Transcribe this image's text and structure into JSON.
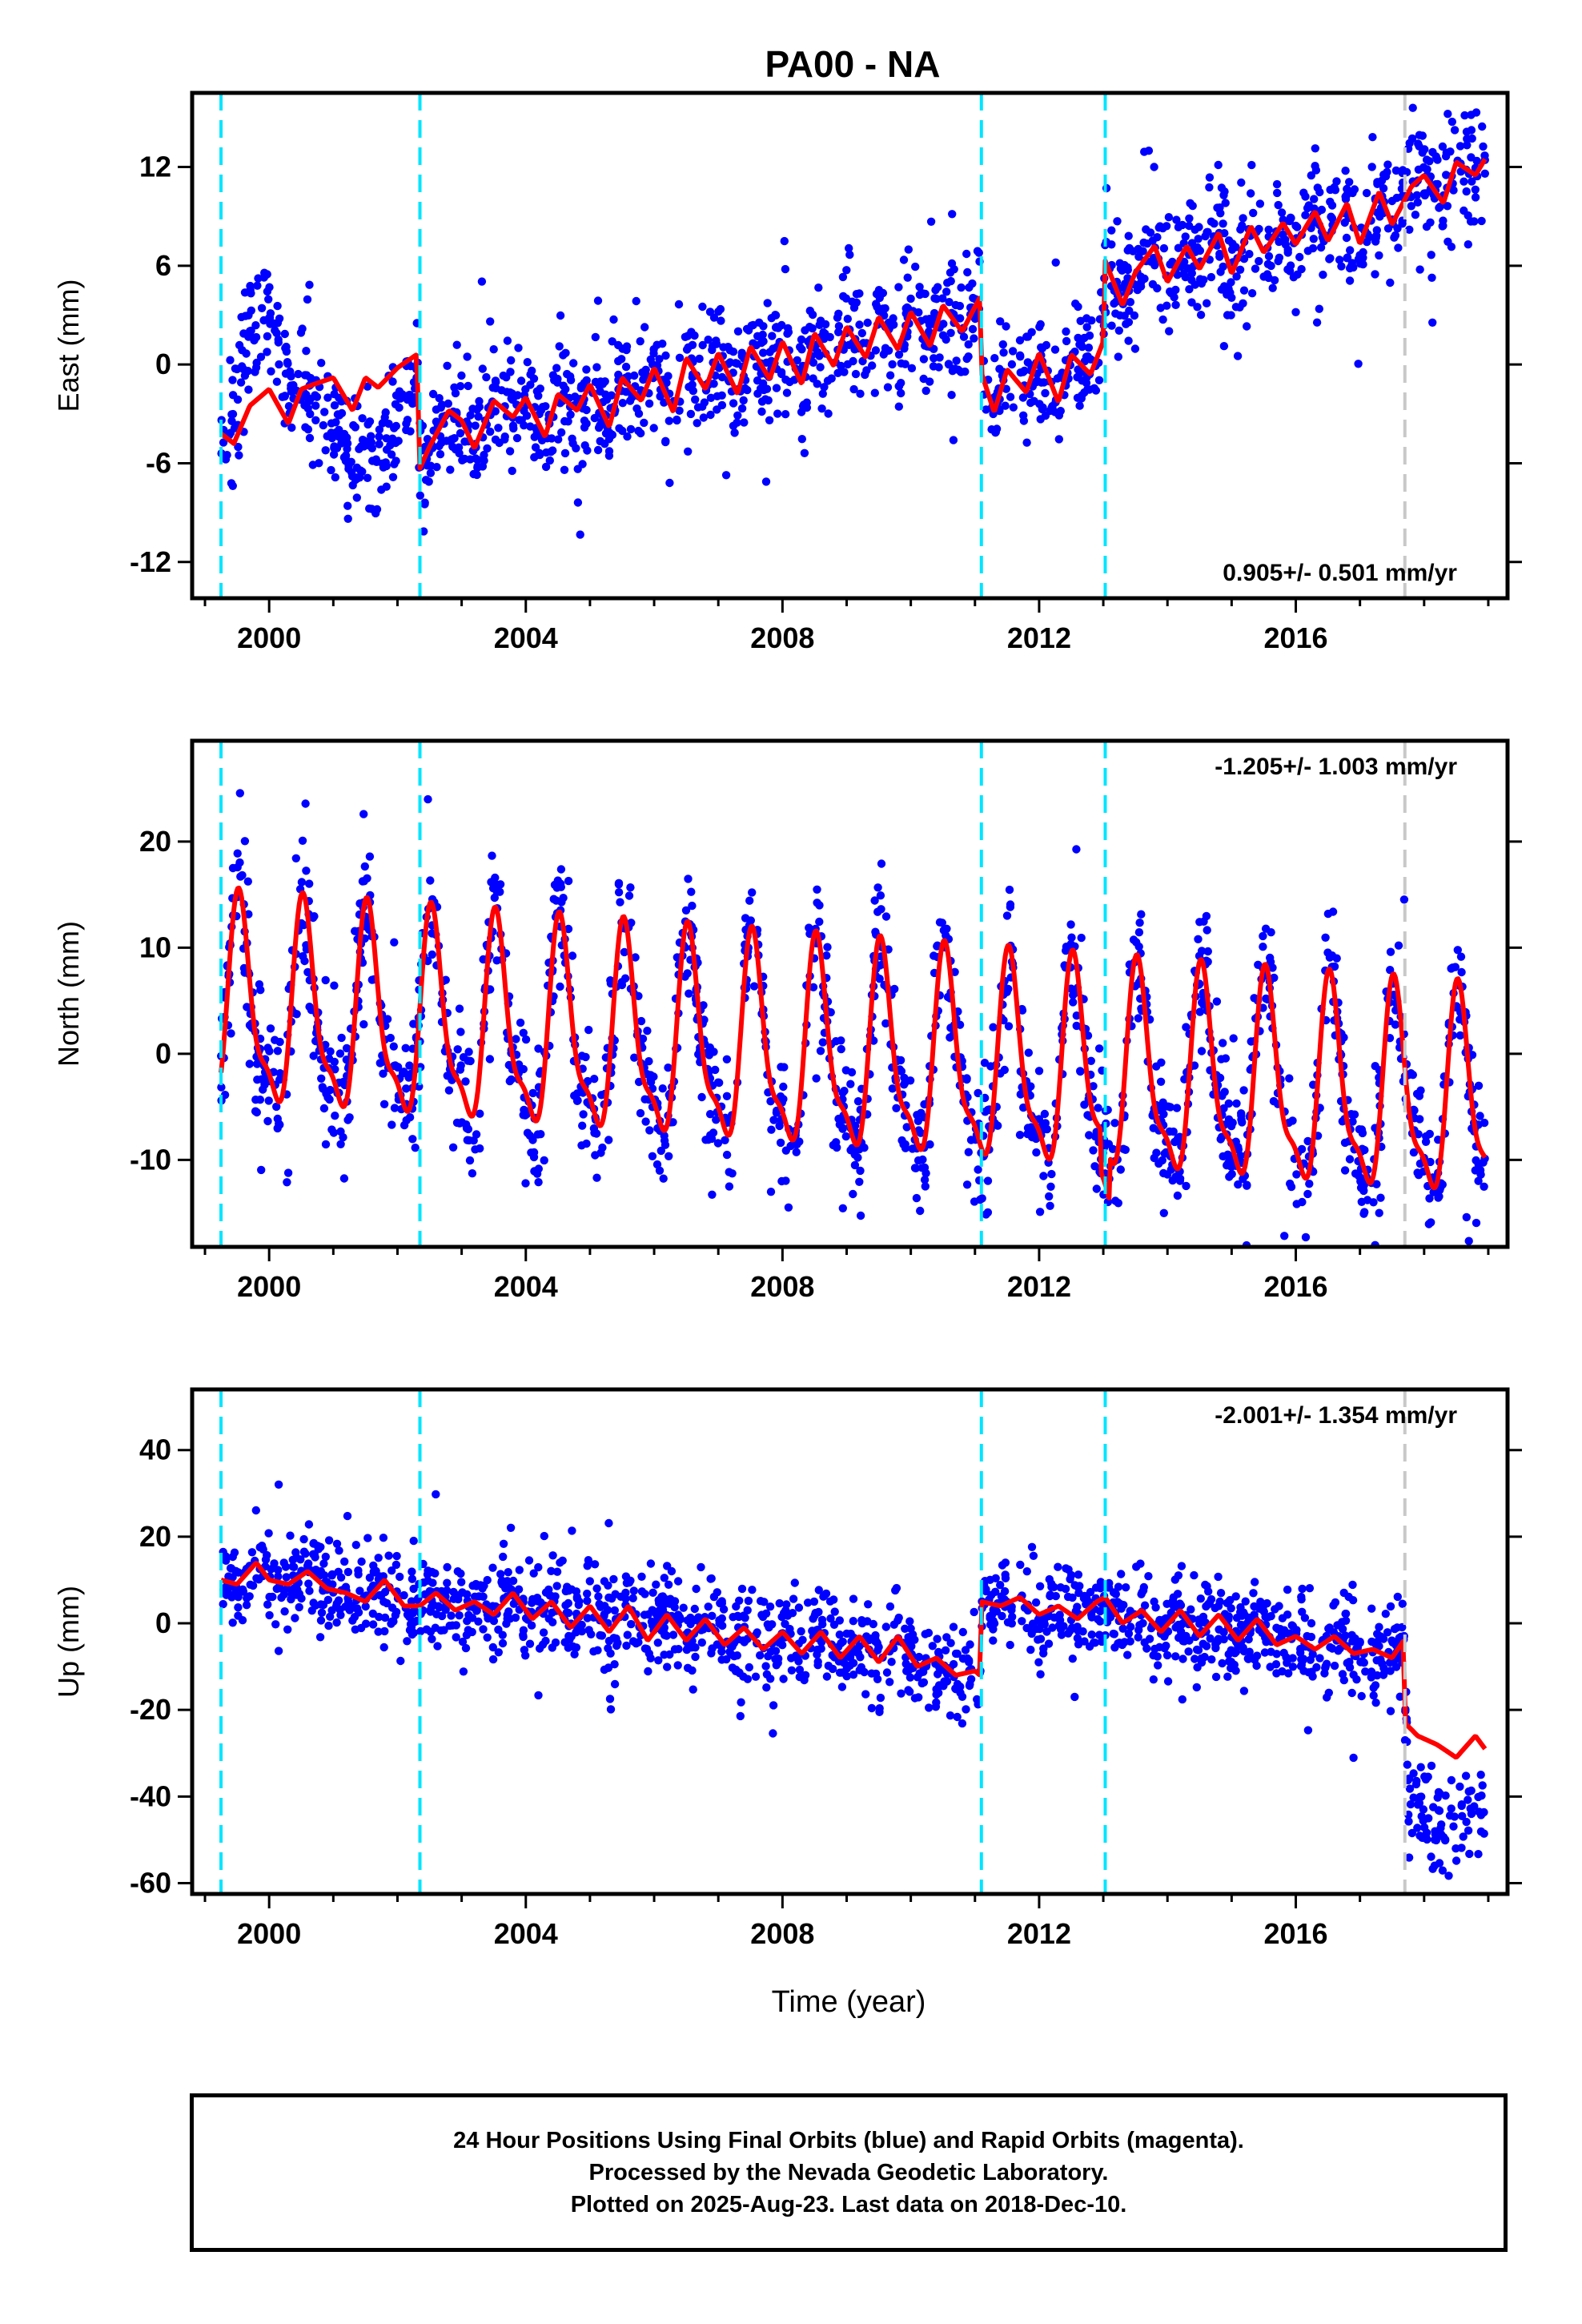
{
  "title": "PA00 - NA",
  "xlabel": "Time (year)",
  "colors": {
    "points": "#0000ff",
    "model": "#ff0000",
    "offset_equipment": "#00e5ff",
    "offset_other": "#c8c8c8"
  },
  "caption": {
    "line1": "24 Hour Positions Using Final Orbits (blue) and Rapid Orbits (magenta).",
    "line2": "Processed by the Nevada Geodetic Laboratory.",
    "line3": "Plotted on 2025-Aug-23. Last data on 2018-Dec-10."
  },
  "chart_data": [
    {
      "type": "scatter",
      "ylabel": "East (mm)",
      "rate_label": "0.905+/- 0.501 mm/yr",
      "rate_position": "bottom-right",
      "xlim": [
        1998.8,
        2019.3
      ],
      "ylim": [
        -14.2,
        16.5
      ],
      "xticks": [
        2000,
        2004,
        2008,
        2012,
        2016
      ],
      "yticks": [
        -12,
        -6,
        0,
        6,
        12
      ],
      "offset_lines": [
        {
          "x": 1999.25,
          "kind": "equipment"
        },
        {
          "x": 2002.35,
          "kind": "equipment"
        },
        {
          "x": 2011.1,
          "kind": "equipment"
        },
        {
          "x": 2013.03,
          "kind": "equipment"
        },
        {
          "x": 2017.7,
          "kind": "other"
        }
      ],
      "model_series": {
        "name": "model",
        "x": [
          1999.25,
          1999.45,
          1999.7,
          2000.0,
          2000.3,
          2000.5,
          2000.7,
          2001.0,
          2001.3,
          2001.5,
          2001.7,
          2002.0,
          2002.3,
          2002.35,
          2002.5,
          2002.8,
          2003.0,
          2003.2,
          2003.5,
          2003.8,
          2004.0,
          2004.3,
          2004.5,
          2004.8,
          2005.0,
          2005.3,
          2005.5,
          2005.8,
          2006.0,
          2006.3,
          2006.5,
          2006.8,
          2007.0,
          2007.3,
          2007.5,
          2007.8,
          2008.0,
          2008.3,
          2008.5,
          2008.8,
          2009.0,
          2009.3,
          2009.5,
          2009.8,
          2010.0,
          2010.3,
          2010.5,
          2010.8,
          2011.08,
          2011.1,
          2011.3,
          2011.5,
          2011.8,
          2012.0,
          2012.3,
          2012.5,
          2012.8,
          2013.0,
          2013.03,
          2013.3,
          2013.5,
          2013.8,
          2014.0,
          2014.3,
          2014.5,
          2014.8,
          2015.0,
          2015.3,
          2015.5,
          2015.8,
          2016.0,
          2016.3,
          2016.5,
          2016.8,
          2017.0,
          2017.3,
          2017.5,
          2017.8,
          2018.0,
          2018.3,
          2018.5,
          2018.8,
          2019.0
        ],
        "y": [
          -4.2,
          -4.8,
          -2.5,
          -1.5,
          -3.6,
          -1.5,
          -1.2,
          -0.8,
          -2.8,
          -0.8,
          -1.4,
          -0.2,
          0.6,
          -6.3,
          -5.0,
          -2.8,
          -3.4,
          -5.1,
          -2.2,
          -3.2,
          -2.0,
          -4.4,
          -1.8,
          -2.8,
          -1.2,
          -3.8,
          -0.8,
          -2.2,
          -0.2,
          -2.9,
          0.4,
          -1.5,
          0.7,
          -1.8,
          1.1,
          -0.9,
          1.4,
          -1.2,
          1.9,
          -0.1,
          2.3,
          0.4,
          2.9,
          0.9,
          3.2,
          1.1,
          3.6,
          2.0,
          4.1,
          -0.5,
          -2.9,
          -0.3,
          -1.7,
          0.7,
          -2.3,
          0.6,
          -0.6,
          1.4,
          6.3,
          3.6,
          5.6,
          7.2,
          5.0,
          7.2,
          5.8,
          8.0,
          5.5,
          8.4,
          6.8,
          8.6,
          7.3,
          9.3,
          7.5,
          9.8,
          7.3,
          10.5,
          8.5,
          10.8,
          11.5,
          9.8,
          12.3,
          11.5,
          12.8
        ]
      },
      "points_summary": "daily positions, ~2000 scattered blue dots"
    },
    {
      "type": "scatter",
      "ylabel": "North (mm)",
      "rate_label": "-1.205+/- 1.003 mm/yr",
      "rate_position": "top-right",
      "xlim": [
        1998.8,
        2019.3
      ],
      "ylim": [
        -18.2,
        29.5
      ],
      "xticks": [
        2000,
        2004,
        2008,
        2012,
        2016
      ],
      "yticks": [
        -10,
        0,
        10,
        20
      ],
      "offset_lines": [
        {
          "x": 1999.25,
          "kind": "equipment"
        },
        {
          "x": 2002.35,
          "kind": "equipment"
        },
        {
          "x": 2011.1,
          "kind": "equipment"
        },
        {
          "x": 2013.03,
          "kind": "equipment"
        },
        {
          "x": 2017.7,
          "kind": "other"
        }
      ],
      "model_series": {
        "name": "model",
        "annual_amplitude_mm": 9,
        "trend_start_mm": 4,
        "trend_mm_per_yr": -0.45
      },
      "points_summary": "daily positions, ~2000 scattered blue dots"
    },
    {
      "type": "scatter",
      "ylabel": "Up (mm)",
      "rate_label": "-2.001+/- 1.354 mm/yr",
      "rate_position": "top-right",
      "xlim": [
        1998.8,
        2019.3
      ],
      "ylim": [
        -62.5,
        54.0
      ],
      "xticks": [
        2000,
        2004,
        2008,
        2012,
        2016
      ],
      "yticks": [
        -60,
        -40,
        -20,
        0,
        20,
        40
      ],
      "offset_lines": [
        {
          "x": 1999.25,
          "kind": "equipment"
        },
        {
          "x": 2002.35,
          "kind": "equipment"
        },
        {
          "x": 2011.1,
          "kind": "equipment"
        },
        {
          "x": 2013.03,
          "kind": "equipment"
        },
        {
          "x": 2017.7,
          "kind": "other"
        }
      ],
      "model_series": {
        "name": "model",
        "x": [
          1999.25,
          1999.5,
          1999.8,
          2000.0,
          2000.3,
          2000.6,
          2000.9,
          2001.2,
          2001.5,
          2001.8,
          2002.1,
          2002.35,
          2002.6,
          2002.9,
          2003.2,
          2003.5,
          2003.8,
          2004.1,
          2004.4,
          2004.7,
          2005.0,
          2005.3,
          2005.6,
          2005.9,
          2006.2,
          2006.5,
          2006.8,
          2007.1,
          2007.4,
          2007.7,
          2008.0,
          2008.3,
          2008.6,
          2008.9,
          2009.2,
          2009.5,
          2009.8,
          2010.1,
          2010.4,
          2010.7,
          2011.0,
          2011.08,
          2011.1,
          2011.4,
          2011.7,
          2012.0,
          2012.3,
          2012.6,
          2012.9,
          2013.03,
          2013.3,
          2013.6,
          2013.9,
          2014.2,
          2014.5,
          2014.8,
          2015.1,
          2015.4,
          2015.7,
          2016.0,
          2016.3,
          2016.6,
          2016.9,
          2017.2,
          2017.5,
          2017.68,
          2017.7,
          2017.9,
          2018.2,
          2018.5,
          2018.8,
          2019.0
        ],
        "y": [
          10,
          9,
          14,
          10,
          9,
          12,
          8,
          7,
          5,
          10,
          4,
          4,
          7,
          3,
          5,
          2,
          7,
          1,
          5,
          -1,
          4,
          -2,
          4,
          -4,
          2,
          -4,
          1,
          -5,
          -1,
          -6,
          -2,
          -7,
          -2,
          -8,
          -3,
          -9,
          -3,
          -10,
          -8,
          -12,
          -11,
          -12,
          5,
          4,
          6,
          2,
          4,
          1,
          5,
          6,
          0,
          3,
          -2,
          3,
          -3,
          2,
          -4,
          1,
          -5,
          -3,
          -6,
          -3,
          -7,
          -6,
          -8,
          -4,
          -23,
          -26,
          -28,
          -31,
          -26,
          -30
        ]
      },
      "points_summary": "daily positions, ~2000 scattered blue dots"
    }
  ]
}
